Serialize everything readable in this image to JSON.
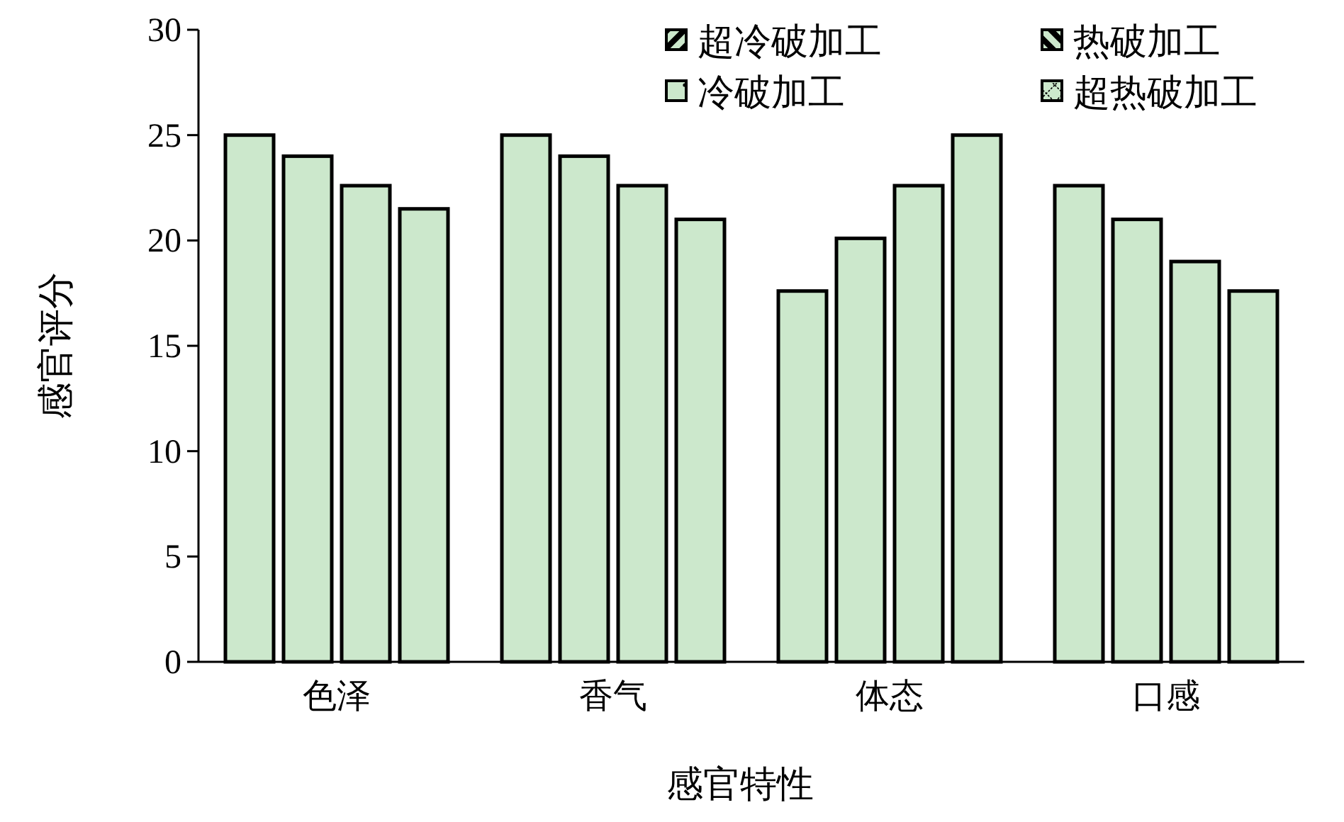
{
  "chart_data": {
    "type": "bar",
    "xlabel": "感官特性",
    "ylabel": "感官评分",
    "categories": [
      "色泽",
      "香气",
      "体态",
      "口感"
    ],
    "series": [
      {
        "name": "超冷破加工",
        "color": "#cce8cc",
        "values": [
          25.0,
          25.0,
          17.6,
          22.6
        ]
      },
      {
        "name": "冷破加工",
        "color": "#cce8cc",
        "values": [
          24.0,
          24.0,
          20.1,
          21.0
        ]
      },
      {
        "name": "热破加工",
        "color": "#cce8cc",
        "values": [
          22.6,
          22.6,
          22.6,
          19.0
        ]
      },
      {
        "name": "超热破加工",
        "color": "#cce8cc",
        "values": [
          21.5,
          21.0,
          25.0,
          17.6
        ]
      }
    ],
    "ylim": [
      0,
      30
    ],
    "yticks": [
      0,
      5,
      10,
      15,
      20,
      25,
      30
    ],
    "grid": false,
    "legend": "top right"
  }
}
